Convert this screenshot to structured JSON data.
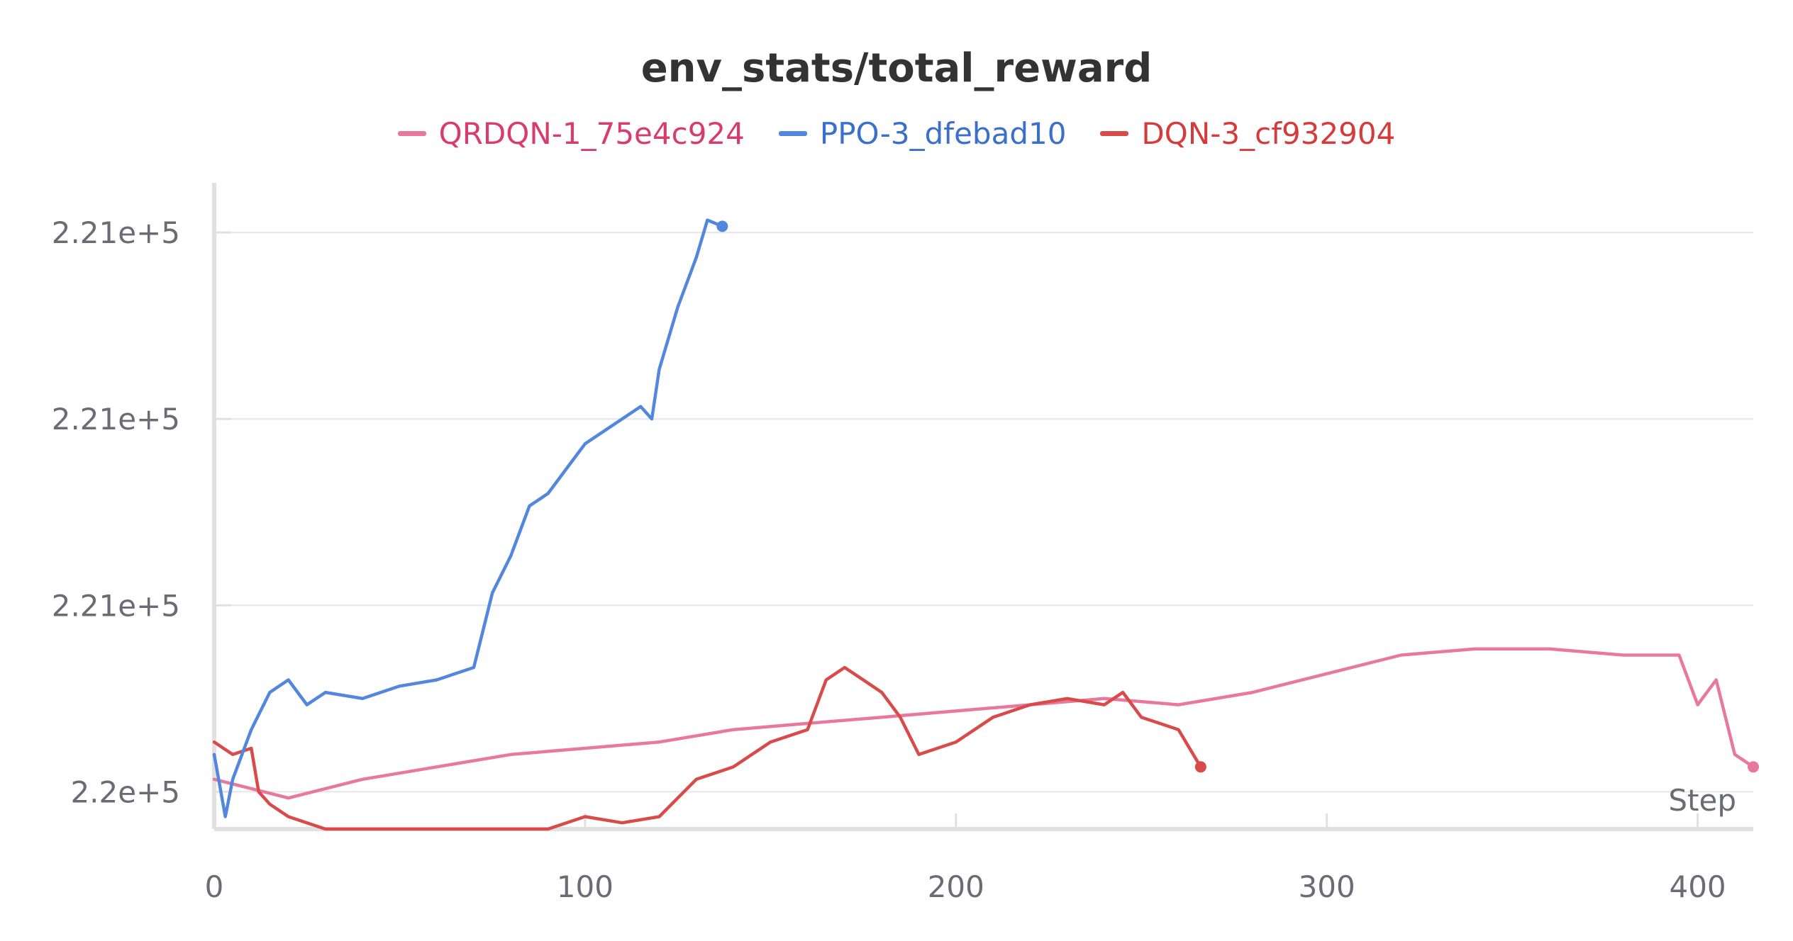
{
  "chart_data": {
    "type": "line",
    "title": "env_stats/total_reward",
    "xlabel": "Step",
    "ylabel": "",
    "xlim": [
      0,
      415
    ],
    "ylim": [
      220000,
      220052
    ],
    "x_ticks": [
      0,
      100,
      200,
      300,
      400
    ],
    "x_tick_labels": [
      "0",
      "100",
      "200",
      "300",
      "400"
    ],
    "y_ticks": [
      220003,
      220018,
      220033,
      220048
    ],
    "y_tick_labels": [
      "2.2e+5",
      "2.21e+5",
      "2.21e+5",
      "2.21e+5"
    ],
    "grid": true,
    "legend_position": "top",
    "series": [
      {
        "name": "QRDQN-1_75e4c924",
        "color": "#e8799c",
        "text_color": "#d83c6c",
        "points": [
          [
            0,
            220004
          ],
          [
            20,
            220002.5
          ],
          [
            40,
            220004
          ],
          [
            60,
            220005
          ],
          [
            80,
            220006
          ],
          [
            100,
            220006.5
          ],
          [
            120,
            220007
          ],
          [
            140,
            220008
          ],
          [
            160,
            220008.5
          ],
          [
            180,
            220009
          ],
          [
            200,
            220009.5
          ],
          [
            220,
            220010
          ],
          [
            240,
            220010.5
          ],
          [
            260,
            220010
          ],
          [
            280,
            220011
          ],
          [
            300,
            220012.5
          ],
          [
            320,
            220014
          ],
          [
            340,
            220014.5
          ],
          [
            360,
            220014.5
          ],
          [
            380,
            220014
          ],
          [
            395,
            220014
          ],
          [
            400,
            220010
          ],
          [
            405,
            220012
          ],
          [
            410,
            220006
          ],
          [
            415,
            220005
          ]
        ]
      },
      {
        "name": "PPO-3_dfebad10",
        "color": "#5387dd",
        "text_color": "#3a6fcb",
        "points": [
          [
            0,
            220006
          ],
          [
            3,
            220001
          ],
          [
            5,
            220004
          ],
          [
            10,
            220008
          ],
          [
            15,
            220011
          ],
          [
            20,
            220012
          ],
          [
            25,
            220010
          ],
          [
            30,
            220011
          ],
          [
            40,
            220010.5
          ],
          [
            50,
            220011.5
          ],
          [
            60,
            220012
          ],
          [
            70,
            220013
          ],
          [
            75,
            220019
          ],
          [
            80,
            220022
          ],
          [
            85,
            220026
          ],
          [
            90,
            220027
          ],
          [
            95,
            220029
          ],
          [
            100,
            220031
          ],
          [
            105,
            220032
          ],
          [
            110,
            220033
          ],
          [
            115,
            220034
          ],
          [
            118,
            220033
          ],
          [
            120,
            220037
          ],
          [
            125,
            220042
          ],
          [
            130,
            220046
          ],
          [
            133,
            220049
          ],
          [
            137,
            220048.5
          ]
        ]
      },
      {
        "name": "DQN-3_cf932904",
        "color": "#d94b4b",
        "text_color": "#d63b3b",
        "points": [
          [
            0,
            220007
          ],
          [
            5,
            220006
          ],
          [
            10,
            220006.5
          ],
          [
            12,
            220003
          ],
          [
            15,
            220002
          ],
          [
            20,
            220001
          ],
          [
            30,
            220000
          ],
          [
            50,
            220000
          ],
          [
            70,
            220000
          ],
          [
            90,
            220000
          ],
          [
            100,
            220001
          ],
          [
            110,
            220000.5
          ],
          [
            120,
            220001
          ],
          [
            130,
            220004
          ],
          [
            140,
            220005
          ],
          [
            150,
            220007
          ],
          [
            160,
            220008
          ],
          [
            165,
            220012
          ],
          [
            170,
            220013
          ],
          [
            175,
            220012
          ],
          [
            180,
            220011
          ],
          [
            185,
            220009
          ],
          [
            190,
            220006
          ],
          [
            200,
            220007
          ],
          [
            210,
            220009
          ],
          [
            220,
            220010
          ],
          [
            230,
            220010.5
          ],
          [
            240,
            220010
          ],
          [
            245,
            220011
          ],
          [
            250,
            220009
          ],
          [
            260,
            220008
          ],
          [
            266,
            220005
          ]
        ]
      }
    ]
  }
}
